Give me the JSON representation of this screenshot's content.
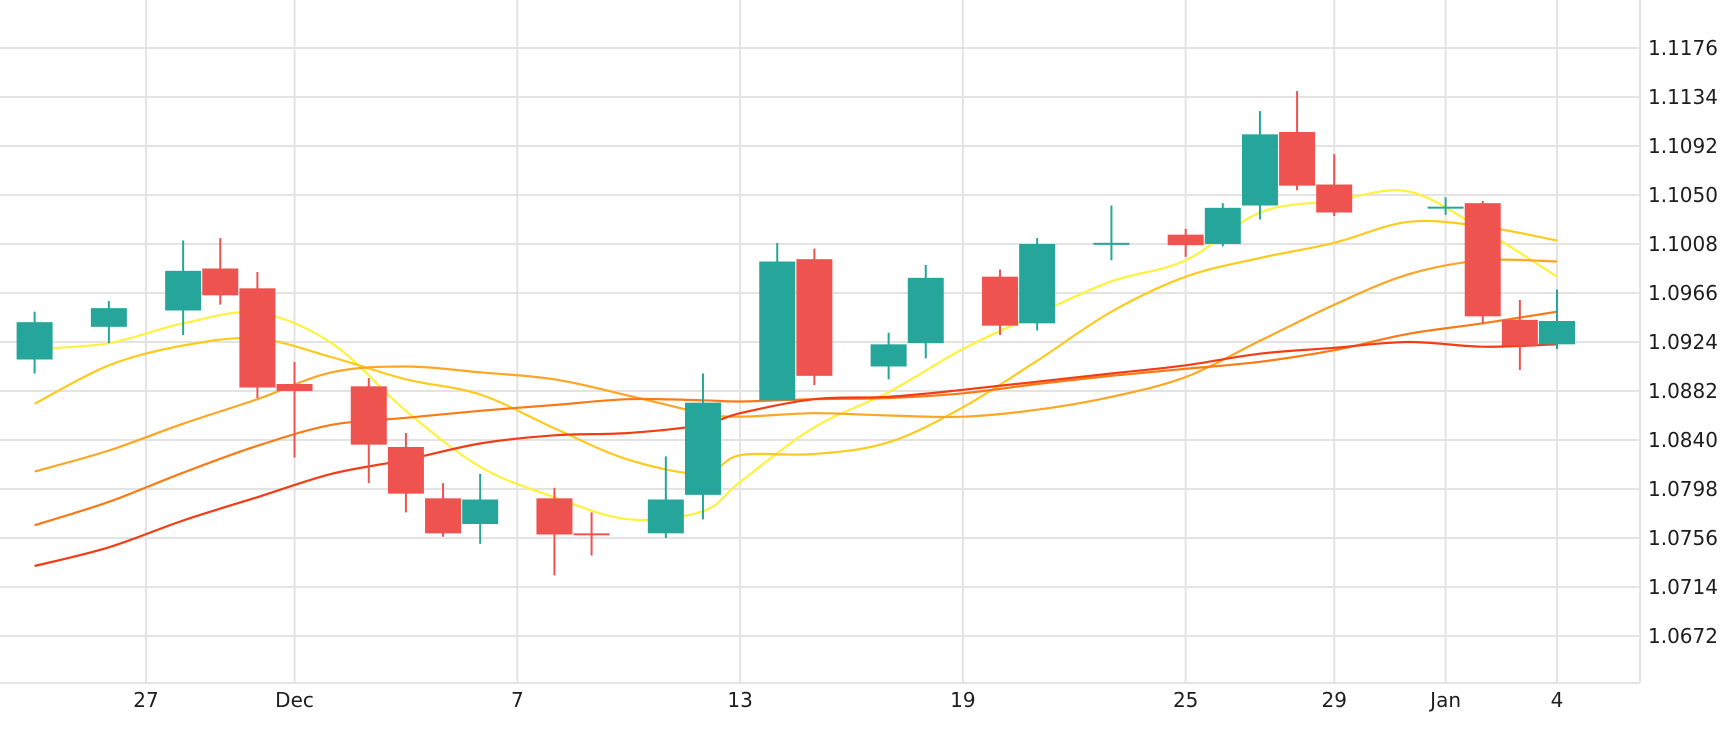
{
  "chart_data": {
    "type": "candlestick",
    "title": "",
    "xlabel": "",
    "ylabel": "",
    "ylim": [
      1.063,
      1.12
    ],
    "x_ticks": [
      {
        "label": "27",
        "date": "2023-11-27"
      },
      {
        "label": "Dec",
        "date": "2023-12-01"
      },
      {
        "label": "7",
        "date": "2023-12-07"
      },
      {
        "label": "13",
        "date": "2023-12-13"
      },
      {
        "label": "19",
        "date": "2023-12-19"
      },
      {
        "label": "25",
        "date": "2023-12-25"
      },
      {
        "label": "29",
        "date": "2023-12-29"
      },
      {
        "label": "Jan",
        "date": "2024-01-01"
      },
      {
        "label": "4",
        "date": "2024-01-04"
      }
    ],
    "y_ticks": [
      "1.1176",
      "1.1134",
      "1.1092",
      "1.1050",
      "1.1008",
      "1.0966",
      "1.0924",
      "1.0882",
      "1.0840",
      "1.0798",
      "1.0756",
      "1.0714",
      "1.0672"
    ],
    "grid": true,
    "colors": {
      "up": "#26a69a",
      "down": "#ef5350",
      "grid": "#e3e3e3",
      "text": "#1e1e1e"
    },
    "candles": [
      {
        "date": "2023-11-24",
        "open": 1.0909,
        "high": 1.095,
        "low": 1.0897,
        "close": 1.0941
      },
      {
        "date": "2023-11-26",
        "open": 1.0937,
        "high": 1.0959,
        "low": 1.0923,
        "close": 1.0953
      },
      {
        "date": "2023-11-28",
        "open": 1.0951,
        "high": 1.1011,
        "low": 1.093,
        "close": 1.0985
      },
      {
        "date": "2023-11-29",
        "open": 1.0987,
        "high": 1.1013,
        "low": 1.0956,
        "close": 1.0964
      },
      {
        "date": "2023-11-30",
        "open": 1.097,
        "high": 1.0984,
        "low": 1.0876,
        "close": 1.0885
      },
      {
        "date": "2023-12-01",
        "open": 1.0888,
        "high": 1.0907,
        "low": 1.0825,
        "close": 1.0882
      },
      {
        "date": "2023-12-03",
        "open": 1.0886,
        "high": 1.0893,
        "low": 1.0803,
        "close": 1.0836
      },
      {
        "date": "2023-12-04",
        "open": 1.0834,
        "high": 1.0846,
        "low": 1.0778,
        "close": 1.0794
      },
      {
        "date": "2023-12-05",
        "open": 1.079,
        "high": 1.0803,
        "low": 1.0757,
        "close": 1.076
      },
      {
        "date": "2023-12-06",
        "open": 1.0768,
        "high": 1.0811,
        "low": 1.0751,
        "close": 1.0789
      },
      {
        "date": "2023-12-08",
        "open": 1.079,
        "high": 1.0799,
        "low": 1.0724,
        "close": 1.0759
      },
      {
        "date": "2023-12-09",
        "open": 1.076,
        "high": 1.0778,
        "low": 1.0741,
        "close": 1.0759
      },
      {
        "date": "2023-12-11",
        "open": 1.076,
        "high": 1.0826,
        "low": 1.0756,
        "close": 1.0789
      },
      {
        "date": "2023-12-12",
        "open": 1.0793,
        "high": 1.0897,
        "low": 1.0772,
        "close": 1.0872
      },
      {
        "date": "2023-12-14",
        "open": 1.0874,
        "high": 1.1009,
        "low": 1.0874,
        "close": 1.0993
      },
      {
        "date": "2023-12-15",
        "open": 1.0995,
        "high": 1.1004,
        "low": 1.0887,
        "close": 1.0895
      },
      {
        "date": "2023-12-17",
        "open": 1.0903,
        "high": 1.0932,
        "low": 1.0892,
        "close": 1.0922
      },
      {
        "date": "2023-12-18",
        "open": 1.0923,
        "high": 1.099,
        "low": 1.091,
        "close": 1.0979
      },
      {
        "date": "2023-12-20",
        "open": 1.098,
        "high": 1.0986,
        "low": 1.093,
        "close": 1.0938
      },
      {
        "date": "2023-12-21",
        "open": 1.094,
        "high": 1.1013,
        "low": 1.0934,
        "close": 1.1008
      },
      {
        "date": "2023-12-23",
        "open": 1.1009,
        "high": 1.1041,
        "low": 1.0994,
        "close": 1.1009
      },
      {
        "date": "2023-12-25",
        "open": 1.1016,
        "high": 1.1021,
        "low": 1.0997,
        "close": 1.1007
      },
      {
        "date": "2023-12-26",
        "open": 1.1008,
        "high": 1.1043,
        "low": 1.1006,
        "close": 1.1039
      },
      {
        "date": "2023-12-27",
        "open": 1.1041,
        "high": 1.1122,
        "low": 1.1029,
        "close": 1.1102
      },
      {
        "date": "2023-12-28",
        "open": 1.1104,
        "high": 1.1139,
        "low": 1.1054,
        "close": 1.1058
      },
      {
        "date": "2023-12-29",
        "open": 1.1059,
        "high": 1.1085,
        "low": 1.1032,
        "close": 1.1035
      },
      {
        "date": "2024-01-01",
        "open": 1.104,
        "high": 1.1048,
        "low": 1.1033,
        "close": 1.104
      },
      {
        "date": "2024-01-02",
        "open": 1.1043,
        "high": 1.1045,
        "low": 1.094,
        "close": 1.0946
      },
      {
        "date": "2024-01-03",
        "open": 1.0943,
        "high": 1.096,
        "low": 1.09,
        "close": 1.0921
      },
      {
        "date": "2024-01-04",
        "open": 1.0922,
        "high": 1.0969,
        "low": 1.0918,
        "close": 1.0942
      }
    ],
    "series": [
      {
        "color": "#fef23c",
        "x": [
          "2023-11-24",
          "2023-11-26",
          "2023-11-28",
          "2023-11-30",
          "2023-12-02",
          "2023-12-04",
          "2023-12-06",
          "2023-12-08",
          "2023-12-10",
          "2023-12-12",
          "2023-12-13",
          "2023-12-15",
          "2023-12-17",
          "2023-12-19",
          "2023-12-21",
          "2023-12-23",
          "2023-12-25",
          "2023-12-27",
          "2023-12-29",
          "2023-12-31",
          "2024-01-02",
          "2024-01-04"
        ],
        "values": [
          1.0918,
          1.0923,
          1.094,
          1.0949,
          1.0923,
          1.0865,
          1.0817,
          1.0791,
          1.0772,
          1.0779,
          1.0804,
          1.0851,
          1.0881,
          1.0918,
          1.0948,
          1.0976,
          1.0994,
          1.1035,
          1.1045,
          1.1053,
          1.102,
          1.098
        ]
      },
      {
        "color": "#fdca1f",
        "x": [
          "2023-11-24",
          "2023-11-26",
          "2023-11-28",
          "2023-11-30",
          "2023-12-02",
          "2023-12-04",
          "2023-12-06",
          "2023-12-08",
          "2023-12-10",
          "2023-12-12",
          "2023-12-13",
          "2023-12-15",
          "2023-12-17",
          "2023-12-19",
          "2023-12-21",
          "2023-12-23",
          "2023-12-25",
          "2023-12-27",
          "2023-12-29",
          "2023-12-31",
          "2024-01-02",
          "2024-01-04"
        ],
        "values": [
          1.0871,
          1.0904,
          1.0921,
          1.0927,
          1.0911,
          1.0892,
          1.0879,
          1.085,
          1.0823,
          1.0811,
          1.0827,
          1.0828,
          1.0838,
          1.0868,
          1.0908,
          1.095,
          1.098,
          1.0996,
          1.1009,
          1.1027,
          1.1023,
          1.1011
        ]
      },
      {
        "color": "#fda624",
        "x": [
          "2023-11-24",
          "2023-11-26",
          "2023-11-28",
          "2023-11-30",
          "2023-12-02",
          "2023-12-04",
          "2023-12-06",
          "2023-12-08",
          "2023-12-10",
          "2023-12-12",
          "2023-12-13",
          "2023-12-15",
          "2023-12-17",
          "2023-12-19",
          "2023-12-21",
          "2023-12-23",
          "2023-12-25",
          "2023-12-27",
          "2023-12-29",
          "2023-12-31",
          "2024-01-02",
          "2024-01-04"
        ],
        "values": [
          1.0813,
          1.0831,
          1.0854,
          1.0875,
          1.0898,
          1.0903,
          1.0898,
          1.0892,
          1.0878,
          1.0863,
          1.086,
          1.0863,
          1.0861,
          1.086,
          1.0866,
          1.0877,
          1.0894,
          1.0925,
          1.0956,
          1.0982,
          1.0994,
          1.0993
        ]
      },
      {
        "color": "#fc7a16",
        "x": [
          "2023-11-24",
          "2023-11-26",
          "2023-11-28",
          "2023-11-30",
          "2023-12-02",
          "2023-12-04",
          "2023-12-06",
          "2023-12-08",
          "2023-12-10",
          "2023-12-12",
          "2023-12-13",
          "2023-12-15",
          "2023-12-17",
          "2023-12-19",
          "2023-12-21",
          "2023-12-23",
          "2023-12-25",
          "2023-12-27",
          "2023-12-29",
          "2023-12-31",
          "2024-01-02",
          "2024-01-04"
        ],
        "values": [
          1.0767,
          1.0787,
          1.0812,
          1.0835,
          1.0853,
          1.0859,
          1.0865,
          1.087,
          1.0875,
          1.0874,
          1.0873,
          1.0875,
          1.0876,
          1.088,
          1.0888,
          1.0895,
          1.0901,
          1.0907,
          1.0917,
          1.0931,
          1.094,
          1.095
        ]
      },
      {
        "color": "#f43c14",
        "x": [
          "2023-11-24",
          "2023-11-26",
          "2023-11-28",
          "2023-11-30",
          "2023-12-02",
          "2023-12-04",
          "2023-12-06",
          "2023-12-08",
          "2023-12-10",
          "2023-12-12",
          "2023-12-13",
          "2023-12-15",
          "2023-12-17",
          "2023-12-19",
          "2023-12-21",
          "2023-12-23",
          "2023-12-25",
          "2023-12-27",
          "2023-12-29",
          "2023-12-31",
          "2024-01-02",
          "2024-01-04"
        ],
        "values": [
          1.0732,
          1.0748,
          1.0771,
          1.0791,
          1.0811,
          1.0823,
          1.0837,
          1.0844,
          1.0846,
          1.0853,
          1.0863,
          1.0875,
          1.0877,
          1.0883,
          1.089,
          1.0897,
          1.0904,
          1.0914,
          1.0919,
          1.0924,
          1.092,
          1.0922
        ]
      }
    ]
  }
}
